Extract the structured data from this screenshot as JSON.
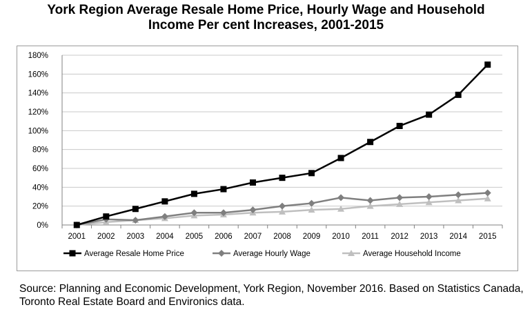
{
  "title_line1": "York Region Average Resale Home Price, Hourly Wage and Household",
  "title_line2": "Income Per cent Increases, 2001-2015",
  "source": "Source: Planning and Economic Development, York Region, November 2016. Based on Statistics Canada, Toronto Real Estate Board and Environics data.",
  "colors": {
    "resale": "#000000",
    "wage": "#7f7f7f",
    "income": "#bfbfbf",
    "grid": "#c8c8c8"
  },
  "chart_data": {
    "type": "line",
    "title": "York Region Average Resale Home Price, Hourly Wage and Household Income Per cent Increases, 2001-2015",
    "xlabel": "",
    "ylabel": "",
    "categories": [
      "2001",
      "2002",
      "2003",
      "2004",
      "2005",
      "2006",
      "2007",
      "2008",
      "2009",
      "2010",
      "2011",
      "2012",
      "2013",
      "2014",
      "2015"
    ],
    "y_ticks": [
      "0%",
      "20%",
      "40%",
      "60%",
      "80%",
      "100%",
      "120%",
      "140%",
      "160%",
      "180%"
    ],
    "ylim": [
      0,
      180
    ],
    "grid": true,
    "legend_position": "bottom",
    "series": [
      {
        "name": "Average Resale Home Price",
        "marker": "square",
        "color": "#000000",
        "values": [
          0,
          9,
          17,
          25,
          33,
          38,
          45,
          50,
          55,
          71,
          88,
          105,
          117,
          138,
          170
        ]
      },
      {
        "name": "Average Hourly Wage",
        "marker": "diamond",
        "color": "#7f7f7f",
        "values": [
          0,
          6,
          5,
          9,
          13,
          13,
          16,
          20,
          23,
          29,
          26,
          29,
          30,
          32,
          34
        ]
      },
      {
        "name": "Average Household Income",
        "marker": "triangle",
        "color": "#bfbfbf",
        "values": [
          0,
          3,
          5,
          7,
          10,
          11,
          13,
          14,
          16,
          17,
          20,
          22,
          24,
          26,
          28
        ]
      }
    ]
  }
}
